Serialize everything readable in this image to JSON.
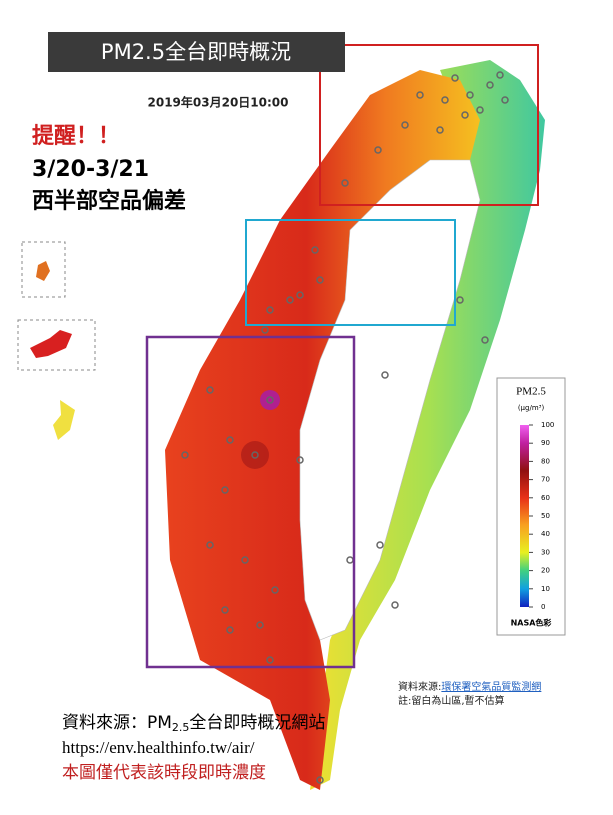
{
  "header": {
    "title": "PM2.5全台即時概況",
    "timestamp": "2019年03月20日10:00"
  },
  "notice": {
    "alert": "提醒！！",
    "dates": "3/20-3/21",
    "message": "西半部空品偏差"
  },
  "legend": {
    "title": "PM2.5",
    "unit": "(μg/m³)",
    "ticks": [
      0,
      10,
      20,
      30,
      40,
      50,
      60,
      70,
      80,
      90,
      100
    ],
    "palette": "NASA色彩"
  },
  "map_note": {
    "source_label": "資料來源:",
    "source_link": "環保署空氣品質監測網",
    "note": "註:留白為山區,暫不估算"
  },
  "footer": {
    "source_prefix": "資料來源：PM",
    "source_subscript": "2.5",
    "source_suffix": "全台即時概況網站",
    "url": "https://env.healthinfo.tw/air/",
    "disclaimer": "本圖僅代表該時段即時濃度"
  }
}
